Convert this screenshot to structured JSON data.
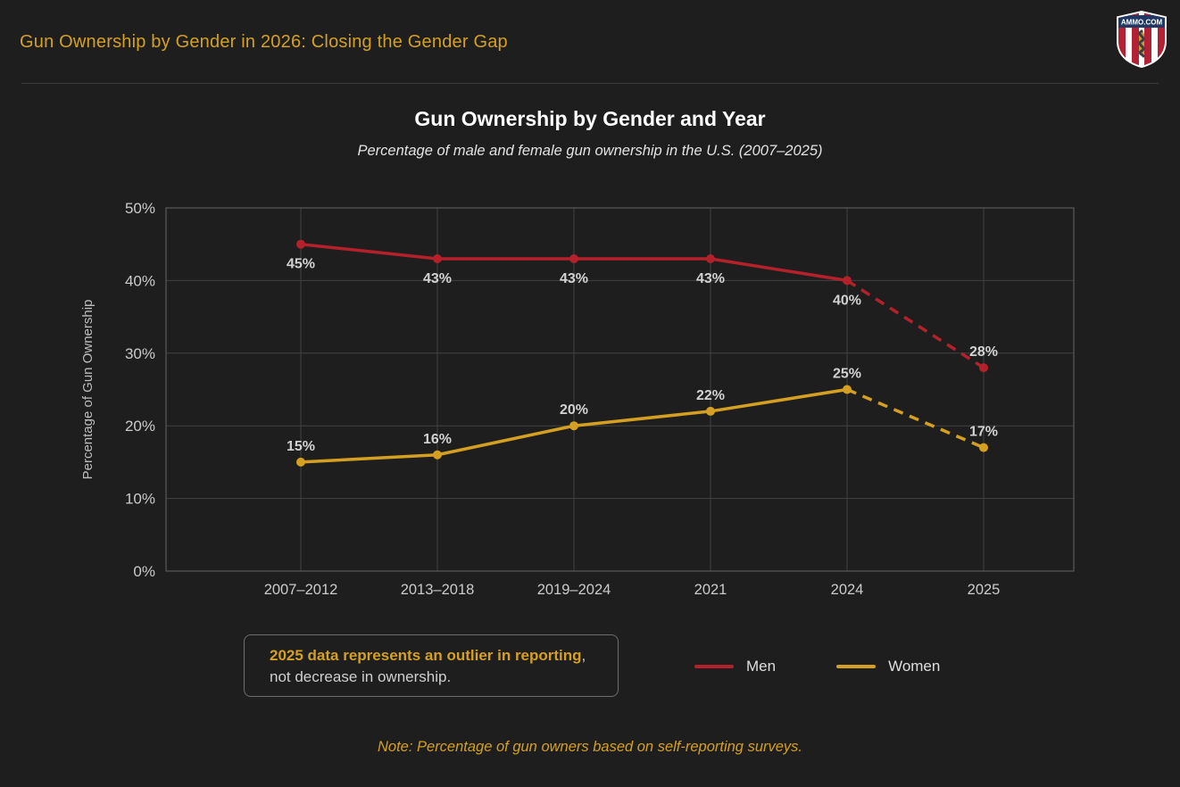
{
  "header": {
    "title": "Gun Ownership by Gender in 2026: Closing the Gender Gap",
    "logo_text": "AMMO.COM"
  },
  "chart_data": {
    "type": "line",
    "title": "Gun Ownership by Gender and Year",
    "subtitle": "Percentage of male and female gun ownership in the U.S. (2007–2025)",
    "categories": [
      "2007–2012",
      "2013–2018",
      "2019–2024",
      "2021",
      "2024",
      "2025"
    ],
    "series": [
      {
        "name": "Men",
        "color": "#b5212a",
        "values": [
          45,
          43,
          43,
          43,
          40,
          28
        ],
        "dashed_from_index": 4,
        "label_placement": [
          "below",
          "below",
          "below",
          "below",
          "below",
          "above"
        ]
      },
      {
        "name": "Women",
        "color": "#d5a021",
        "values": [
          15,
          16,
          20,
          22,
          25,
          17
        ],
        "dashed_from_index": 4,
        "label_placement": [
          "above",
          "above",
          "above",
          "above",
          "above",
          "above"
        ]
      }
    ],
    "xlabel": "",
    "ylabel": "Percentage of Gun Ownership",
    "ylim": [
      0,
      50
    ],
    "yticks": [
      0,
      10,
      20,
      30,
      40,
      50
    ],
    "ytick_suffix": "%",
    "datalabel_suffix": "%",
    "grid": true,
    "legend_position": "bottom"
  },
  "note_box": {
    "highlight": "2025 data represents an outlier in reporting",
    "separator": ",",
    "line2": "not decrease in ownership."
  },
  "footer": {
    "note": "Note: Percentage of gun owners based on self-reporting surveys."
  },
  "colors": {
    "background": "#1e1e1e",
    "accent_gold": "#d5a021",
    "men_red": "#b5212a",
    "grid": "#424242",
    "plot_border": "#5a5a5a",
    "tick_text": "#cbcbcb",
    "title_text": "#ffffff"
  }
}
